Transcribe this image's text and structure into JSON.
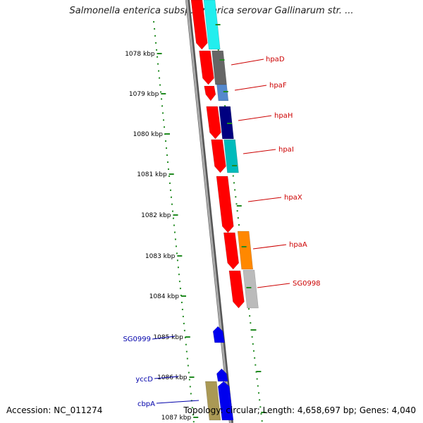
{
  "title": "Salmonella enterica subsp. enterica serovar Gallinarum str. ...",
  "footer": {
    "accession": "Accession: NC_011274",
    "summary": "Topology: circular; Length: 4,658,697 bp; Genes: 4,040"
  },
  "colors": {
    "backbone": "#888888",
    "tick_mark": "#228B22",
    "forward_gene_label": "#cc0000",
    "reverse_gene_label": "#0000aa"
  },
  "ticks": [
    "1078 kbp",
    "1079 kbp",
    "1080 kbp",
    "1081 kbp",
    "1082 kbp",
    "1083 kbp",
    "1084 kbp",
    "1085 kbp",
    "1086 kbp",
    "1087 kbp"
  ],
  "genes": [
    {
      "name": "hpaD",
      "strand": "+",
      "color": "#cc0000"
    },
    {
      "name": "hpaF",
      "strand": "+",
      "color": "#cc0000"
    },
    {
      "name": "hpaH",
      "strand": "+",
      "color": "#cc0000"
    },
    {
      "name": "hpaI",
      "strand": "+",
      "color": "#cc0000"
    },
    {
      "name": "hpaX",
      "strand": "+",
      "color": "#cc0000"
    },
    {
      "name": "hpaA",
      "strand": "+",
      "color": "#cc0000"
    },
    {
      "name": "SG0998",
      "strand": "+",
      "color": "#cc0000"
    },
    {
      "name": "SG0999",
      "strand": "-",
      "color": "#0000aa"
    },
    {
      "name": "yccD",
      "strand": "-",
      "color": "#0000aa"
    },
    {
      "name": "cbpA",
      "strand": "-",
      "color": "#0000aa"
    }
  ]
}
